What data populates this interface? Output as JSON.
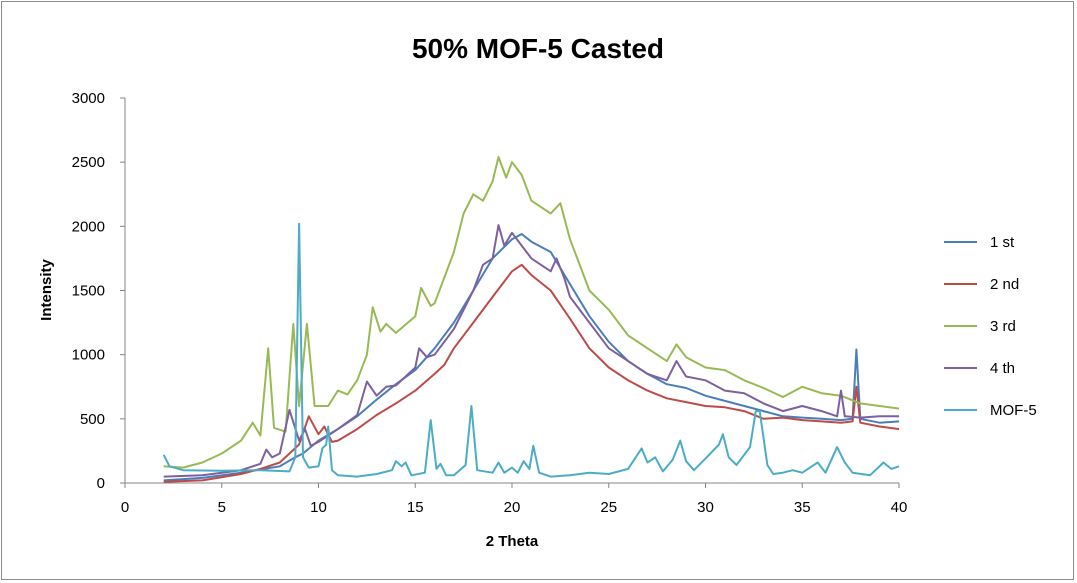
{
  "chart_data": {
    "type": "line",
    "title": "50% MOF-5 Casted",
    "xlabel": "2 Theta",
    "ylabel": "Intensity",
    "xlim": [
      0,
      40
    ],
    "ylim": [
      0,
      3000
    ],
    "xticks": [
      "0",
      "5",
      "10",
      "15",
      "20",
      "25",
      "30",
      "35",
      "40"
    ],
    "yticks": [
      "0",
      "500",
      "1000",
      "1500",
      "2000",
      "2500",
      "3000"
    ],
    "grid": false,
    "legend_position": "right",
    "series": [
      {
        "name": "1 st",
        "color": "#4a7ebb",
        "points": [
          [
            2,
            20
          ],
          [
            4,
            40
          ],
          [
            6,
            80
          ],
          [
            8,
            130
          ],
          [
            8.8,
            200
          ],
          [
            9.2,
            230
          ],
          [
            10,
            330
          ],
          [
            11,
            420
          ],
          [
            12,
            520
          ],
          [
            13,
            650
          ],
          [
            14,
            770
          ],
          [
            15,
            880
          ],
          [
            16,
            1050
          ],
          [
            17,
            1250
          ],
          [
            18,
            1500
          ],
          [
            19,
            1750
          ],
          [
            20,
            1900
          ],
          [
            20.5,
            1940
          ],
          [
            21,
            1880
          ],
          [
            22,
            1800
          ],
          [
            23,
            1550
          ],
          [
            24,
            1300
          ],
          [
            25,
            1100
          ],
          [
            26,
            950
          ],
          [
            27,
            850
          ],
          [
            28,
            770
          ],
          [
            29,
            740
          ],
          [
            30,
            680
          ],
          [
            31,
            640
          ],
          [
            32,
            600
          ],
          [
            33,
            560
          ],
          [
            34,
            520
          ],
          [
            35,
            510
          ],
          [
            36,
            500
          ],
          [
            37,
            490
          ],
          [
            37.6,
            500
          ],
          [
            37.8,
            1040
          ],
          [
            38,
            500
          ],
          [
            39,
            470
          ],
          [
            40,
            480
          ]
        ]
      },
      {
        "name": "2 nd",
        "color": "#be4b48",
        "points": [
          [
            2,
            10
          ],
          [
            4,
            20
          ],
          [
            6,
            70
          ],
          [
            7,
            110
          ],
          [
            8,
            160
          ],
          [
            8.5,
            230
          ],
          [
            9,
            300
          ],
          [
            9.5,
            520
          ],
          [
            10,
            380
          ],
          [
            10.3,
            440
          ],
          [
            10.7,
            320
          ],
          [
            11,
            330
          ],
          [
            12,
            420
          ],
          [
            13,
            530
          ],
          [
            14,
            620
          ],
          [
            15,
            720
          ],
          [
            16,
            850
          ],
          [
            16.5,
            920
          ],
          [
            17,
            1050
          ],
          [
            18,
            1250
          ],
          [
            19,
            1450
          ],
          [
            19.5,
            1550
          ],
          [
            20,
            1650
          ],
          [
            20.5,
            1700
          ],
          [
            21,
            1620
          ],
          [
            22,
            1500
          ],
          [
            23,
            1280
          ],
          [
            24,
            1050
          ],
          [
            25,
            900
          ],
          [
            26,
            800
          ],
          [
            27,
            720
          ],
          [
            28,
            660
          ],
          [
            29,
            630
          ],
          [
            30,
            600
          ],
          [
            31,
            590
          ],
          [
            32,
            560
          ],
          [
            33,
            500
          ],
          [
            34,
            510
          ],
          [
            35,
            490
          ],
          [
            36,
            480
          ],
          [
            37,
            470
          ],
          [
            37.6,
            480
          ],
          [
            37.8,
            750
          ],
          [
            38,
            470
          ],
          [
            39,
            440
          ],
          [
            40,
            420
          ]
        ]
      },
      {
        "name": "3 rd",
        "color": "#98b954",
        "points": [
          [
            2,
            130
          ],
          [
            3,
            120
          ],
          [
            4,
            160
          ],
          [
            5,
            230
          ],
          [
            6,
            330
          ],
          [
            6.6,
            470
          ],
          [
            7,
            370
          ],
          [
            7.4,
            1050
          ],
          [
            7.7,
            430
          ],
          [
            8.3,
            400
          ],
          [
            8.7,
            1240
          ],
          [
            9,
            600
          ],
          [
            9.4,
            1240
          ],
          [
            9.8,
            600
          ],
          [
            10.5,
            600
          ],
          [
            11,
            720
          ],
          [
            11.5,
            690
          ],
          [
            12,
            800
          ],
          [
            12.5,
            1000
          ],
          [
            12.8,
            1370
          ],
          [
            13.2,
            1180
          ],
          [
            13.5,
            1240
          ],
          [
            14,
            1170
          ],
          [
            15,
            1300
          ],
          [
            15.3,
            1520
          ],
          [
            15.8,
            1380
          ],
          [
            16,
            1400
          ],
          [
            17,
            1800
          ],
          [
            17.5,
            2100
          ],
          [
            18,
            2250
          ],
          [
            18.5,
            2200
          ],
          [
            19,
            2350
          ],
          [
            19.3,
            2540
          ],
          [
            19.7,
            2380
          ],
          [
            20,
            2500
          ],
          [
            20.5,
            2400
          ],
          [
            21,
            2200
          ],
          [
            22,
            2100
          ],
          [
            22.5,
            2180
          ],
          [
            23,
            1900
          ],
          [
            24,
            1500
          ],
          [
            25,
            1350
          ],
          [
            26,
            1150
          ],
          [
            27,
            1050
          ],
          [
            28,
            950
          ],
          [
            28.5,
            1080
          ],
          [
            29,
            980
          ],
          [
            30,
            900
          ],
          [
            31,
            880
          ],
          [
            32,
            800
          ],
          [
            33,
            740
          ],
          [
            34,
            670
          ],
          [
            35,
            750
          ],
          [
            36,
            700
          ],
          [
            37,
            680
          ],
          [
            38,
            620
          ],
          [
            39,
            600
          ],
          [
            40,
            580
          ]
        ]
      },
      {
        "name": "4 th",
        "color": "#7d60a0",
        "points": [
          [
            2,
            50
          ],
          [
            4,
            60
          ],
          [
            6,
            100
          ],
          [
            7,
            150
          ],
          [
            7.3,
            260
          ],
          [
            7.6,
            200
          ],
          [
            8,
            230
          ],
          [
            8.5,
            570
          ],
          [
            9,
            330
          ],
          [
            9.3,
            420
          ],
          [
            9.6,
            290
          ],
          [
            10,
            320
          ],
          [
            11,
            420
          ],
          [
            12,
            530
          ],
          [
            12.5,
            790
          ],
          [
            13,
            680
          ],
          [
            13.5,
            750
          ],
          [
            14,
            760
          ],
          [
            15,
            900
          ],
          [
            15.2,
            1050
          ],
          [
            15.6,
            980
          ],
          [
            16,
            1000
          ],
          [
            17,
            1200
          ],
          [
            18,
            1500
          ],
          [
            18.5,
            1700
          ],
          [
            19,
            1750
          ],
          [
            19.3,
            2010
          ],
          [
            19.6,
            1850
          ],
          [
            20,
            1950
          ],
          [
            20.5,
            1850
          ],
          [
            21,
            1750
          ],
          [
            22,
            1650
          ],
          [
            22.3,
            1750
          ],
          [
            22.7,
            1600
          ],
          [
            23,
            1450
          ],
          [
            24,
            1250
          ],
          [
            25,
            1050
          ],
          [
            26,
            950
          ],
          [
            27,
            850
          ],
          [
            28,
            800
          ],
          [
            28.5,
            950
          ],
          [
            29,
            830
          ],
          [
            30,
            800
          ],
          [
            31,
            720
          ],
          [
            32,
            700
          ],
          [
            33,
            620
          ],
          [
            34,
            560
          ],
          [
            35,
            600
          ],
          [
            36,
            560
          ],
          [
            36.8,
            520
          ],
          [
            37,
            720
          ],
          [
            37.2,
            520
          ],
          [
            38,
            510
          ],
          [
            39,
            520
          ],
          [
            40,
            520
          ]
        ]
      },
      {
        "name": "MOF-5",
        "color": "#4bacc6",
        "points": [
          [
            2,
            220
          ],
          [
            2.3,
            130
          ],
          [
            3,
            100
          ],
          [
            5,
            95
          ],
          [
            7,
            100
          ],
          [
            8.5,
            90
          ],
          [
            8.8,
            200
          ],
          [
            9,
            2020
          ],
          [
            9.2,
            200
          ],
          [
            9.5,
            120
          ],
          [
            10,
            130
          ],
          [
            10.2,
            270
          ],
          [
            10.4,
            300
          ],
          [
            10.5,
            440
          ],
          [
            10.7,
            100
          ],
          [
            11,
            60
          ],
          [
            12,
            50
          ],
          [
            13,
            70
          ],
          [
            13.8,
            100
          ],
          [
            14,
            170
          ],
          [
            14.3,
            130
          ],
          [
            14.5,
            160
          ],
          [
            14.8,
            60
          ],
          [
            15.5,
            80
          ],
          [
            15.8,
            490
          ],
          [
            16.1,
            110
          ],
          [
            16.3,
            150
          ],
          [
            16.6,
            60
          ],
          [
            17,
            60
          ],
          [
            17.6,
            140
          ],
          [
            17.9,
            600
          ],
          [
            18.2,
            100
          ],
          [
            19,
            80
          ],
          [
            19.3,
            160
          ],
          [
            19.6,
            80
          ],
          [
            20,
            120
          ],
          [
            20.3,
            80
          ],
          [
            20.6,
            170
          ],
          [
            20.9,
            110
          ],
          [
            21.1,
            290
          ],
          [
            21.4,
            80
          ],
          [
            22,
            50
          ],
          [
            23,
            60
          ],
          [
            24,
            80
          ],
          [
            25,
            70
          ],
          [
            26,
            110
          ],
          [
            26.7,
            270
          ],
          [
            27,
            160
          ],
          [
            27.4,
            200
          ],
          [
            27.8,
            90
          ],
          [
            28.3,
            180
          ],
          [
            28.7,
            330
          ],
          [
            29,
            170
          ],
          [
            29.4,
            100
          ],
          [
            30,
            190
          ],
          [
            30.7,
            300
          ],
          [
            30.9,
            380
          ],
          [
            31.2,
            200
          ],
          [
            31.6,
            140
          ],
          [
            32,
            220
          ],
          [
            32.3,
            280
          ],
          [
            32.6,
            560
          ],
          [
            32.8,
            560
          ],
          [
            33.2,
            140
          ],
          [
            33.5,
            70
          ],
          [
            34,
            80
          ],
          [
            34.5,
            100
          ],
          [
            35,
            80
          ],
          [
            35.5,
            130
          ],
          [
            35.8,
            160
          ],
          [
            36.2,
            80
          ],
          [
            36.8,
            280
          ],
          [
            37.2,
            160
          ],
          [
            37.6,
            80
          ],
          [
            38.5,
            60
          ],
          [
            39.2,
            160
          ],
          [
            39.6,
            110
          ],
          [
            40,
            130
          ]
        ]
      }
    ]
  }
}
